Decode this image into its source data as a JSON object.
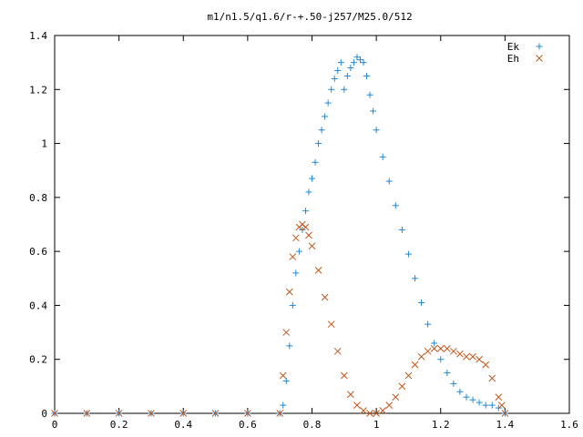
{
  "chart_data": {
    "type": "scatter",
    "title": "m1/n1.5/q1.6/r-+.50-j257/M25.0/512",
    "xlabel": "",
    "ylabel": "",
    "xlim": [
      0,
      1.6
    ],
    "ylim": [
      0,
      1.4
    ],
    "grid": false,
    "legend_position": "top-right",
    "x_ticks": [
      "0",
      "0.2",
      "0.4",
      "0.6",
      "0.8",
      "1",
      "1.2",
      "1.4",
      "1.6"
    ],
    "y_ticks": [
      "0",
      "0.2",
      "0.4",
      "0.6",
      "0.8",
      "1",
      "1.2",
      "1.4"
    ],
    "series": [
      {
        "name": "Ek",
        "marker": "plus",
        "color": "#1f88d6",
        "x": [
          0.0,
          0.1,
          0.2,
          0.3,
          0.4,
          0.5,
          0.6,
          0.7,
          0.71,
          0.72,
          0.73,
          0.74,
          0.75,
          0.76,
          0.77,
          0.78,
          0.79,
          0.8,
          0.81,
          0.82,
          0.83,
          0.84,
          0.85,
          0.86,
          0.87,
          0.88,
          0.89,
          0.9,
          0.91,
          0.92,
          0.93,
          0.94,
          0.95,
          0.96,
          0.97,
          0.98,
          0.99,
          1.0,
          1.02,
          1.04,
          1.06,
          1.08,
          1.1,
          1.12,
          1.14,
          1.16,
          1.18,
          1.2,
          1.22,
          1.24,
          1.26,
          1.28,
          1.3,
          1.32,
          1.34,
          1.36,
          1.38,
          1.4
        ],
        "y": [
          0.0,
          0.0,
          0.0,
          0.0,
          0.0,
          0.0,
          0.0,
          0.0,
          0.03,
          0.12,
          0.25,
          0.4,
          0.52,
          0.6,
          0.68,
          0.75,
          0.82,
          0.87,
          0.93,
          1.0,
          1.05,
          1.1,
          1.15,
          1.2,
          1.24,
          1.27,
          1.3,
          1.2,
          1.25,
          1.28,
          1.3,
          1.32,
          1.31,
          1.3,
          1.25,
          1.18,
          1.12,
          1.05,
          0.95,
          0.86,
          0.77,
          0.68,
          0.59,
          0.5,
          0.41,
          0.33,
          0.26,
          0.2,
          0.15,
          0.11,
          0.08,
          0.06,
          0.05,
          0.04,
          0.03,
          0.03,
          0.02,
          0.0
        ]
      },
      {
        "name": "Eh",
        "marker": "cross",
        "color": "#c0561c",
        "x": [
          0.0,
          0.1,
          0.2,
          0.3,
          0.4,
          0.5,
          0.6,
          0.7,
          0.71,
          0.72,
          0.73,
          0.74,
          0.75,
          0.76,
          0.77,
          0.78,
          0.79,
          0.8,
          0.82,
          0.84,
          0.86,
          0.88,
          0.9,
          0.92,
          0.94,
          0.96,
          0.98,
          1.0,
          1.02,
          1.04,
          1.06,
          1.08,
          1.1,
          1.12,
          1.14,
          1.16,
          1.18,
          1.2,
          1.22,
          1.24,
          1.26,
          1.28,
          1.3,
          1.32,
          1.34,
          1.36,
          1.38,
          1.39,
          1.4
        ],
        "y": [
          0.0,
          0.0,
          0.0,
          0.0,
          0.0,
          0.0,
          0.0,
          0.0,
          0.14,
          0.3,
          0.45,
          0.58,
          0.65,
          0.69,
          0.7,
          0.69,
          0.66,
          0.62,
          0.53,
          0.43,
          0.33,
          0.23,
          0.14,
          0.07,
          0.03,
          0.01,
          0.0,
          0.0,
          0.01,
          0.03,
          0.06,
          0.1,
          0.14,
          0.18,
          0.21,
          0.23,
          0.24,
          0.24,
          0.24,
          0.23,
          0.22,
          0.21,
          0.21,
          0.2,
          0.18,
          0.13,
          0.06,
          0.03,
          0.0
        ]
      }
    ]
  }
}
